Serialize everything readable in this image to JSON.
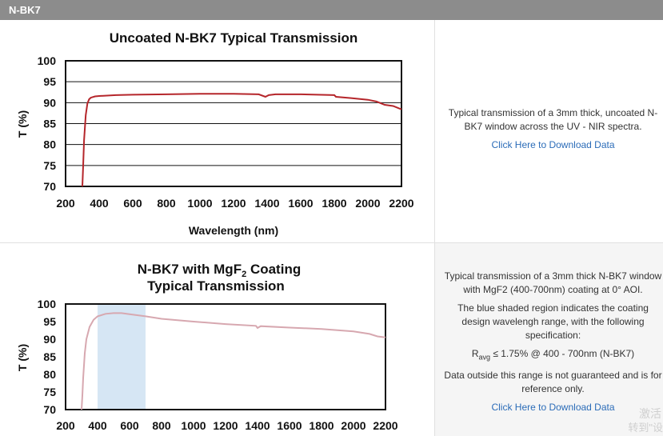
{
  "header": {
    "title": "N-BK7"
  },
  "row1": {
    "description": "Typical transmission of a 3mm thick, uncoated N-BK7 window across the UV - NIR spectra.",
    "link": "Click Here to Download Data"
  },
  "row2": {
    "p1": "Typical transmission of a 3mm thick N-BK7 window with MgF2 (400-700nm) coating at 0° AOI.",
    "p2": "The blue shaded region indicates the coating design wavelengh range, with the following specification:",
    "spec_prefix": "R",
    "spec_sub": "avg",
    "spec_rest": " ≤ 1.75% @ 400 - 700nm (N-BK7)",
    "p3": "Data outside this range is not guaranteed and is for reference only.",
    "link": "Click Here to Download Data"
  },
  "watermark": {
    "line1": "激活",
    "line2": "转到\"设"
  },
  "chart_data": [
    {
      "type": "line",
      "title": "Uncoated N-BK7 Typical Transmission",
      "xlabel": "Wavelength (nm)",
      "ylabel": "T (%)",
      "xlim": [
        200,
        2200
      ],
      "ylim": [
        70,
        100
      ],
      "xticks": [
        200,
        400,
        600,
        800,
        1000,
        1200,
        1400,
        1600,
        1800,
        2000,
        2200
      ],
      "yticks": [
        70,
        75,
        80,
        85,
        90,
        95,
        100
      ],
      "grid": true,
      "color": "#b5262b",
      "series": [
        {
          "x": [
            300,
            305,
            310,
            320,
            330,
            340,
            350,
            375,
            400,
            500,
            600,
            800,
            1000,
            1200,
            1350,
            1390,
            1410,
            1450,
            1600,
            1800,
            1810,
            1900,
            2000,
            2050,
            2100,
            2150,
            2200
          ],
          "y": [
            70,
            75,
            81,
            87,
            89.8,
            90.8,
            91.2,
            91.5,
            91.6,
            91.8,
            91.9,
            92.0,
            92.1,
            92.1,
            92.0,
            91.4,
            91.8,
            92.0,
            92.0,
            91.8,
            91.4,
            91.1,
            90.7,
            90.3,
            89.5,
            89.2,
            88.4
          ]
        }
      ]
    },
    {
      "type": "line",
      "title_line1": "N-BK7 with MgF",
      "title_sub": "2",
      "title_line1_end": " Coating",
      "title_line2": "Typical Transmission",
      "xlabel": "",
      "ylabel": "T (%)",
      "xlim": [
        200,
        2200
      ],
      "ylim": [
        70,
        100
      ],
      "xticks": [
        200,
        400,
        600,
        800,
        1000,
        1200,
        1400,
        1600,
        1800,
        2000,
        2200
      ],
      "yticks": [
        70,
        75,
        80,
        85,
        90,
        95,
        100
      ],
      "grid": false,
      "color": "#d7a8b0",
      "shade_range": [
        400,
        700
      ],
      "shade_color": "#d6e6f4",
      "series": [
        {
          "x": [
            300,
            305,
            310,
            320,
            330,
            350,
            375,
            400,
            450,
            500,
            550,
            600,
            700,
            800,
            1000,
            1200,
            1390,
            1400,
            1420,
            1600,
            1800,
            2000,
            2100,
            2150,
            2200
          ],
          "y": [
            70,
            74,
            79,
            86,
            90,
            93.5,
            95.5,
            96.5,
            97.2,
            97.4,
            97.4,
            97.1,
            96.5,
            95.8,
            95.0,
            94.3,
            93.8,
            93.2,
            93.7,
            93.3,
            92.9,
            92.2,
            91.5,
            90.8,
            90.5
          ]
        }
      ]
    }
  ]
}
